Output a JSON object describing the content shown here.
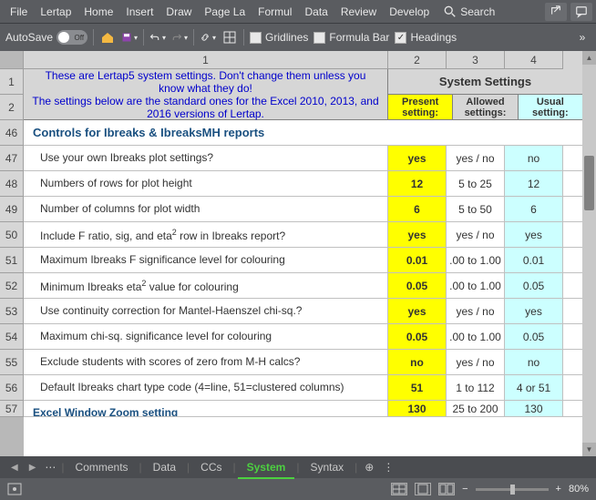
{
  "ribbon": {
    "tabs": [
      "File",
      "Lertap",
      "Home",
      "Insert",
      "Draw",
      "Page La",
      "Formul",
      "Data",
      "Review",
      "Develop"
    ],
    "search": "Search"
  },
  "toolbar": {
    "autosave": "AutoSave",
    "autosave_state": "Off",
    "gridlines": "Gridlines",
    "formulabar": "Formula Bar",
    "headings": "Headings"
  },
  "columns": [
    "1",
    "2",
    "3",
    "4"
  ],
  "banner": {
    "line1": "These are Lertap5 system settings. Don't change them unless you know what they do!",
    "line2": "The settings below are the standard ones for the Excel 2010, 2013, and 2016 versions of Lertap.",
    "title": "System Settings",
    "col_present1": "Present",
    "col_present2": "setting:",
    "col_allowed1": "Allowed",
    "col_allowed2": "settings:",
    "col_usual1": "Usual",
    "col_usual2": "setting:"
  },
  "header_rows": [
    "1",
    "2"
  ],
  "section_row": "46",
  "section_title": "Controls for Ibreaks & IbreaksMH reports",
  "rows": [
    {
      "n": "47",
      "desc": "Use your own Ibreaks plot settings?",
      "p": "yes",
      "a": "yes / no",
      "u": "no"
    },
    {
      "n": "48",
      "desc": "Numbers of rows for plot height",
      "p": "12",
      "a": "5 to 25",
      "u": "12"
    },
    {
      "n": "49",
      "desc": "Number of columns for plot width",
      "p": "6",
      "a": "5 to 50",
      "u": "6"
    },
    {
      "n": "50",
      "desc": "Include F ratio, sig, and eta² row in Ibreaks report?",
      "p": "yes",
      "a": "yes / no",
      "u": "yes"
    },
    {
      "n": "51",
      "desc": "Maximum Ibreaks F significance level for colouring",
      "p": "0.01",
      "a": ".00 to 1.00",
      "u": "0.01"
    },
    {
      "n": "52",
      "desc": "Minimum Ibreaks eta² value for colouring",
      "p": "0.05",
      "a": ".00 to 1.00",
      "u": "0.05"
    },
    {
      "n": "53",
      "desc": "Use continuity correction for Mantel-Haenszel chi-sq.?",
      "p": "yes",
      "a": "yes / no",
      "u": "yes"
    },
    {
      "n": "54",
      "desc": "Maximum chi-sq. significance level for colouring",
      "p": "0.05",
      "a": ".00 to 1.00",
      "u": "0.05"
    },
    {
      "n": "55",
      "desc": "Exclude students with scores of zero from M-H calcs?",
      "p": "no",
      "a": "yes / no",
      "u": "no"
    },
    {
      "n": "56",
      "desc": "Default Ibreaks chart type code (4=line, 51=clustered columns)",
      "p": "51",
      "a": "1 to 112",
      "u": "4 or 51"
    }
  ],
  "partial_row": {
    "n": "57",
    "desc": "Excel Window Zoom setting",
    "p": "130",
    "a": "25 to 200",
    "u": "130"
  },
  "tabs": {
    "items": [
      "Comments",
      "Data",
      "CCs",
      "System",
      "Syntax"
    ],
    "active": 3
  },
  "status": {
    "zoom": "80%"
  }
}
